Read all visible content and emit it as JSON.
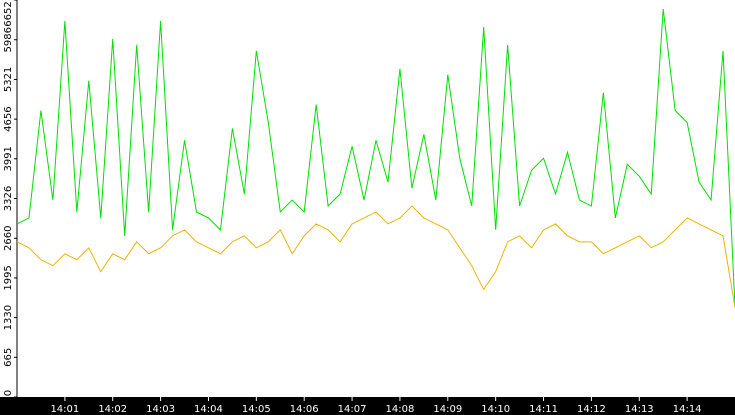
{
  "chart_data": {
    "type": "line",
    "x": [
      0,
      0.25,
      0.5,
      0.75,
      1,
      1.25,
      1.5,
      1.75,
      2,
      2.25,
      2.5,
      2.75,
      3,
      3.25,
      3.5,
      3.75,
      4,
      4.25,
      4.5,
      4.75,
      5,
      5.25,
      5.5,
      5.75,
      6,
      6.25,
      6.5,
      6.75,
      7,
      7.25,
      7.5,
      7.75,
      8,
      8.25,
      8.5,
      8.75,
      9,
      9.25,
      9.5,
      9.75,
      10,
      10.25,
      10.5,
      10.75,
      11,
      11.25,
      11.5,
      11.75,
      12,
      12.25,
      12.5,
      12.75,
      13,
      13.25,
      13.5,
      13.75,
      14,
      14.25,
      14.5,
      14.75,
      15
    ],
    "series": [
      {
        "color": "#00e000",
        "values": [
          2900,
          3000,
          4800,
          3300,
          6300,
          3100,
          5300,
          3000,
          6000,
          2700,
          5900,
          3100,
          6300,
          2800,
          4300,
          3100,
          3000,
          2800,
          4500,
          3400,
          5800,
          4600,
          3100,
          3300,
          3100,
          4900,
          3200,
          3400,
          4200,
          3300,
          4300,
          3600,
          5500,
          3500,
          4400,
          3300,
          5400,
          4000,
          3200,
          6200,
          2800,
          5900,
          3200,
          3800,
          4000,
          3400,
          4100,
          3300,
          3200,
          5100,
          3000,
          3900,
          3700,
          3400,
          6500,
          4800,
          4600,
          3600,
          3300,
          5800,
          1500
        ]
      },
      {
        "color": "#f0b400",
        "values": [
          2600,
          2500,
          2300,
          2200,
          2400,
          2300,
          2500,
          2100,
          2400,
          2300,
          2600,
          2400,
          2500,
          2700,
          2800,
          2600,
          2500,
          2400,
          2600,
          2700,
          2500,
          2600,
          2800,
          2400,
          2700,
          2900,
          2800,
          2600,
          2900,
          3000,
          3100,
          2900,
          3000,
          3200,
          3000,
          2900,
          2800,
          2500,
          2200,
          1800,
          2100,
          2600,
          2700,
          2500,
          2800,
          2900,
          2700,
          2600,
          2600,
          2400,
          2500,
          2600,
          2700,
          2500,
          2600,
          2800,
          3000,
          2900,
          2800,
          2700,
          1500
        ]
      }
    ],
    "xlim": [
      0,
      15
    ],
    "xticks": [
      {
        "value": 1,
        "label": "14:01"
      },
      {
        "value": 2,
        "label": "14:02"
      },
      {
        "value": 3,
        "label": "14:03"
      },
      {
        "value": 4,
        "label": "14:04"
      },
      {
        "value": 5,
        "label": "14:05"
      },
      {
        "value": 6,
        "label": "14:06"
      },
      {
        "value": 7,
        "label": "14:07"
      },
      {
        "value": 8,
        "label": "14:08"
      },
      {
        "value": 9,
        "label": "14:09"
      },
      {
        "value": 10,
        "label": "14:10"
      },
      {
        "value": 11,
        "label": "14:11"
      },
      {
        "value": 12,
        "label": "14:12"
      },
      {
        "value": 13,
        "label": "14:13"
      },
      {
        "value": 14,
        "label": "14:14"
      }
    ],
    "ylim": [
      0,
      6652
    ],
    "yticks": [
      0,
      665,
      1330,
      1995,
      2660,
      3326,
      3991,
      4656,
      5321,
      5986,
      6652
    ]
  }
}
